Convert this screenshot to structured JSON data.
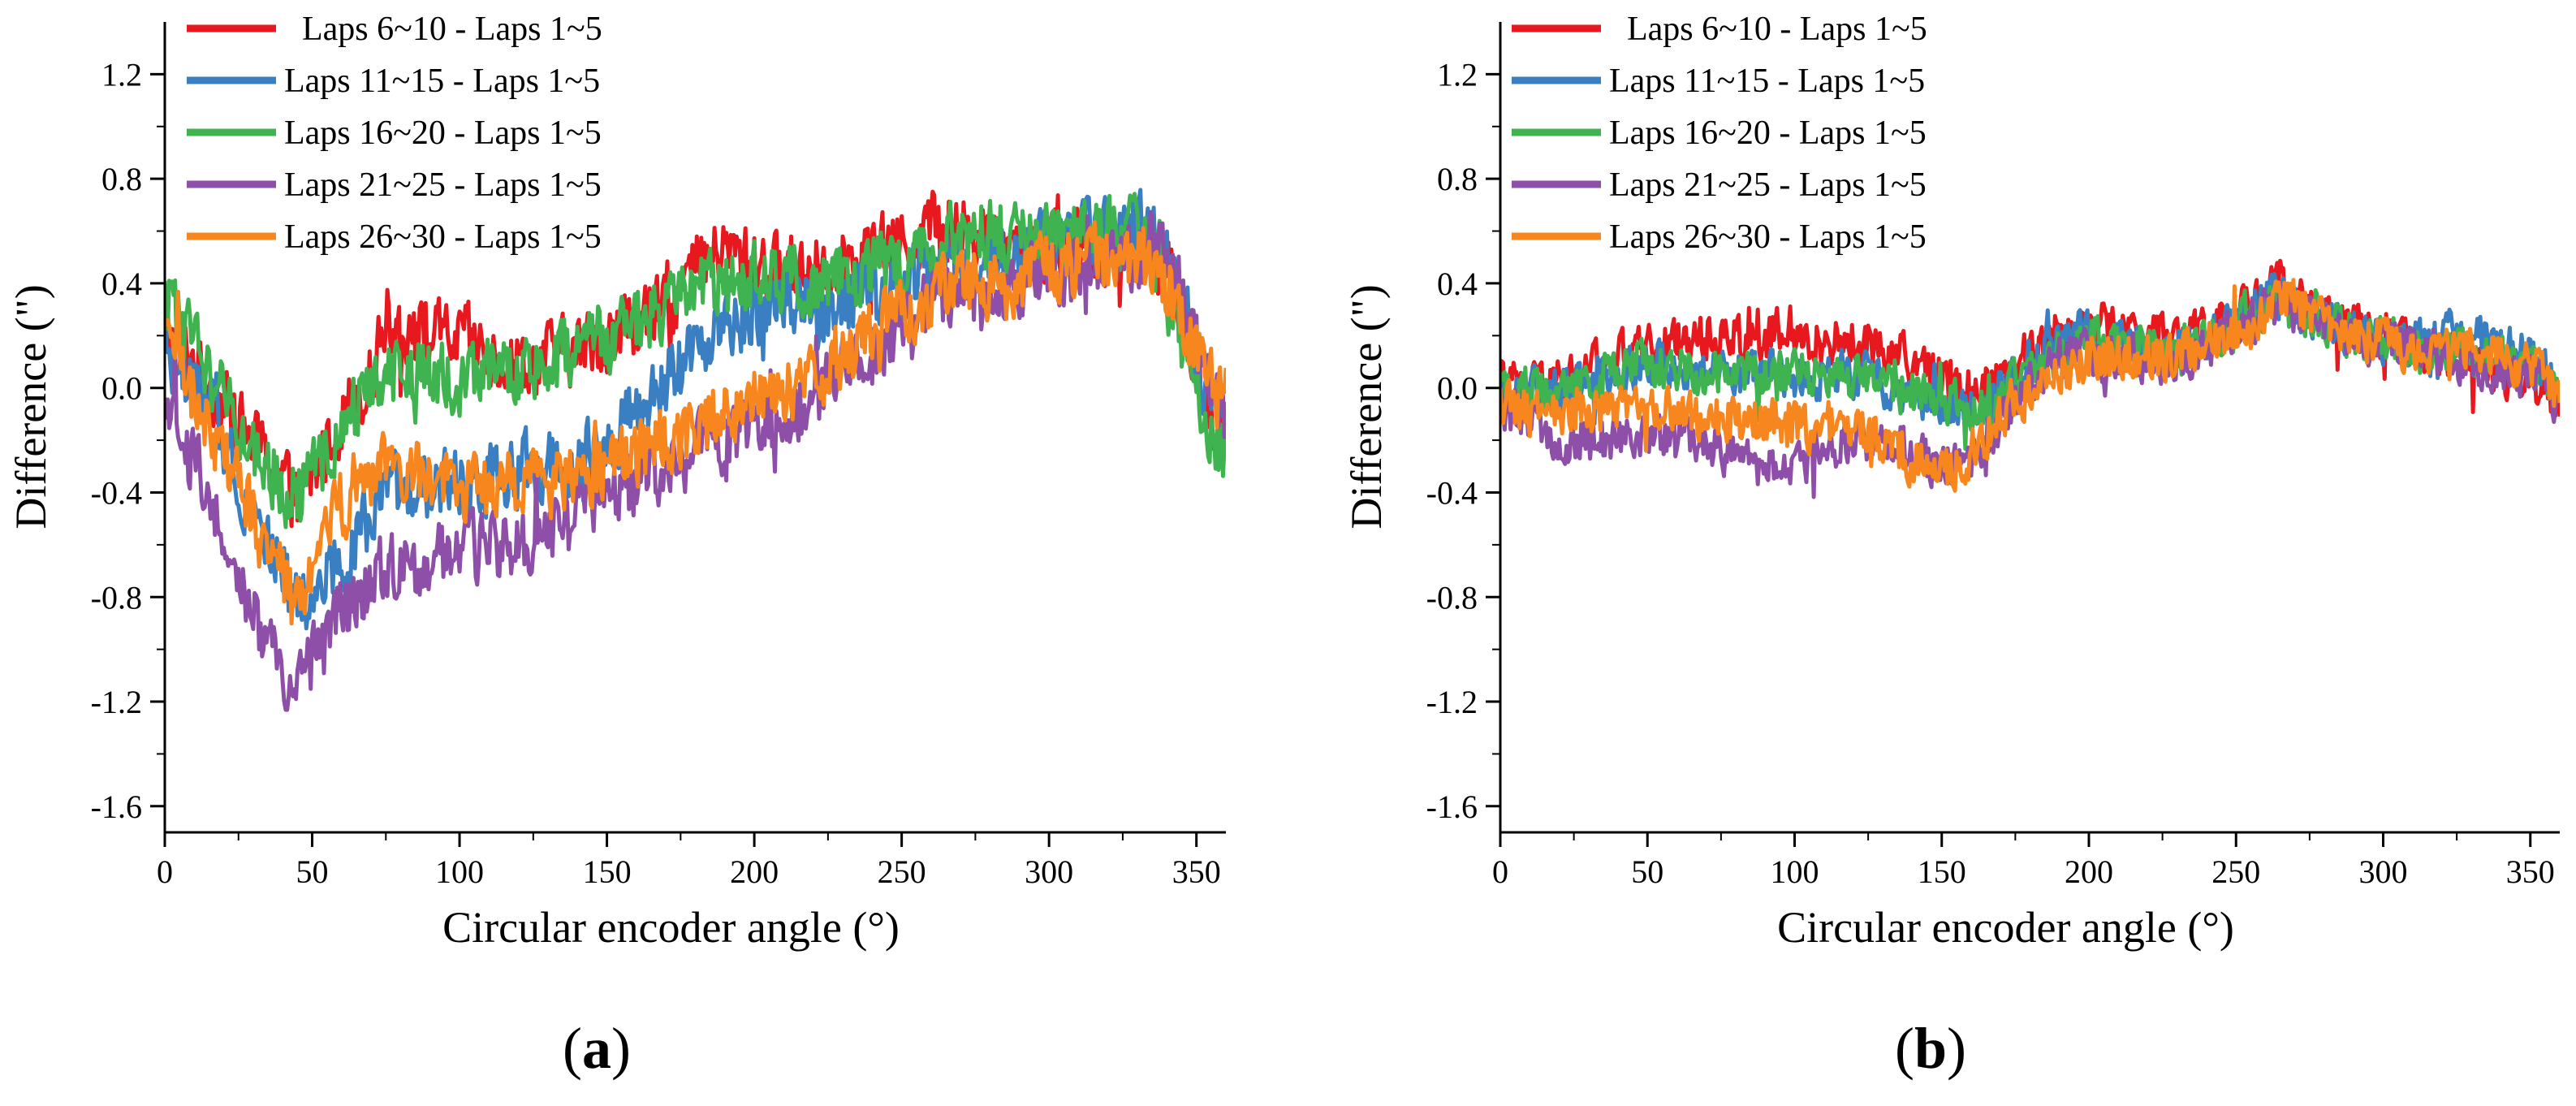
{
  "figure": {
    "panel_labels": [
      "(a)",
      "(b)"
    ]
  },
  "chart_data": [
    {
      "type": "line",
      "panel": "(a)",
      "title": "",
      "xlabel": "Circular encoder angle (°)",
      "ylabel": "Difference (\")",
      "xlim": [
        0,
        360
      ],
      "ylim": [
        -1.7,
        1.4
      ],
      "xticks": [
        0,
        50,
        100,
        150,
        200,
        250,
        300,
        350
      ],
      "yticks": [
        1.2,
        0.8,
        0.4,
        0.0,
        -0.4,
        -0.8,
        -1.2,
        -1.6
      ],
      "ytick_labels": [
        "1.2",
        "0.8",
        "0.4",
        "0.0",
        "-0.4",
        "-0.8",
        "-1.2",
        "-1.6"
      ],
      "grid": false,
      "legend_position": "top-left",
      "x": [
        0,
        10,
        20,
        30,
        40,
        45,
        50,
        60,
        70,
        75,
        80,
        90,
        100,
        110,
        120,
        130,
        140,
        150,
        160,
        170,
        180,
        190,
        200,
        210,
        220,
        230,
        240,
        250,
        260,
        270,
        280,
        290,
        300,
        310,
        320,
        330,
        335,
        340,
        345,
        350,
        355,
        360
      ],
      "noise_amplitude": 0.12,
      "series": [
        {
          "name": "Laps 6~10 - Laps 1~5",
          "color": "#e8191e",
          "values": [
            0.22,
            0.1,
            -0.05,
            -0.2,
            -0.35,
            -0.45,
            -0.35,
            -0.1,
            0.05,
            0.28,
            0.25,
            0.2,
            0.18,
            0.14,
            0.1,
            0.12,
            0.15,
            0.2,
            0.25,
            0.3,
            0.45,
            0.52,
            0.48,
            0.45,
            0.48,
            0.5,
            0.52,
            0.55,
            0.62,
            0.6,
            0.58,
            0.55,
            0.55,
            0.56,
            0.58,
            0.58,
            0.55,
            0.45,
            0.3,
            0.1,
            -0.1,
            -0.2
          ]
        },
        {
          "name": "Laps 11~15 - Laps 1~5",
          "color": "#3a7fc1",
          "values": [
            0.15,
            0.0,
            -0.2,
            -0.45,
            -0.7,
            -0.85,
            -0.8,
            -0.65,
            -0.5,
            -0.42,
            -0.4,
            -0.38,
            -0.36,
            -0.34,
            -0.32,
            -0.3,
            -0.26,
            -0.2,
            -0.1,
            0.0,
            0.15,
            0.25,
            0.3,
            0.3,
            0.3,
            0.32,
            0.35,
            0.4,
            0.45,
            0.48,
            0.5,
            0.52,
            0.55,
            0.58,
            0.6,
            0.62,
            0.6,
            0.5,
            0.35,
            0.1,
            -0.1,
            -0.2
          ]
        },
        {
          "name": "Laps 16~20 - Laps 1~5",
          "color": "#3fb34f",
          "values": [
            0.35,
            0.15,
            -0.05,
            -0.25,
            -0.38,
            -0.42,
            -0.35,
            -0.15,
            0.0,
            0.05,
            0.08,
            0.05,
            0.02,
            0.05,
            0.08,
            0.1,
            0.15,
            0.2,
            0.25,
            0.3,
            0.35,
            0.4,
            0.42,
            0.4,
            0.4,
            0.42,
            0.45,
            0.48,
            0.55,
            0.58,
            0.6,
            0.58,
            0.56,
            0.58,
            0.6,
            0.58,
            0.55,
            0.45,
            0.2,
            -0.05,
            -0.2,
            -0.25
          ]
        },
        {
          "name": "Laps 21~25 - Laps 1~5",
          "color": "#8e4fa8",
          "values": [
            -0.1,
            -0.3,
            -0.55,
            -0.85,
            -1.1,
            -1.2,
            -1.05,
            -0.85,
            -0.75,
            -0.7,
            -0.68,
            -0.66,
            -0.64,
            -0.62,
            -0.58,
            -0.55,
            -0.5,
            -0.45,
            -0.35,
            -0.3,
            -0.25,
            -0.2,
            -0.15,
            -0.1,
            -0.05,
            0.05,
            0.15,
            0.25,
            0.3,
            0.35,
            0.38,
            0.4,
            0.42,
            0.45,
            0.48,
            0.5,
            0.55,
            0.45,
            0.35,
            0.15,
            0.0,
            -0.1
          ]
        },
        {
          "name": "Laps 26~30 - Laps 1~5",
          "color": "#f7861e",
          "values": [
            0.2,
            -0.05,
            -0.25,
            -0.5,
            -0.75,
            -0.85,
            -0.65,
            -0.45,
            -0.35,
            -0.3,
            -0.32,
            -0.35,
            -0.38,
            -0.38,
            -0.38,
            -0.36,
            -0.34,
            -0.3,
            -0.25,
            -0.2,
            -0.15,
            -0.1,
            -0.05,
            0.0,
            0.05,
            0.12,
            0.2,
            0.3,
            0.35,
            0.38,
            0.4,
            0.42,
            0.45,
            0.48,
            0.5,
            0.5,
            0.48,
            0.4,
            0.3,
            0.1,
            0.0,
            -0.05
          ]
        }
      ]
    },
    {
      "type": "line",
      "panel": "(b)",
      "title": "",
      "xlabel": "Circular encoder angle (°)",
      "ylabel": "Difference (\")",
      "xlim": [
        0,
        360
      ],
      "ylim": [
        -1.7,
        1.4
      ],
      "xticks": [
        0,
        50,
        100,
        150,
        200,
        250,
        300,
        350
      ],
      "yticks": [
        1.2,
        0.8,
        0.4,
        0.0,
        -0.4,
        -0.8,
        -1.2,
        -1.6
      ],
      "ytick_labels": [
        "1.2",
        "0.8",
        "0.4",
        "0.0",
        "-0.4",
        "-0.8",
        "-1.2",
        "-1.6"
      ],
      "grid": false,
      "legend_position": "top-left",
      "x": [
        0,
        10,
        20,
        30,
        40,
        50,
        60,
        70,
        80,
        90,
        100,
        110,
        120,
        130,
        140,
        150,
        160,
        170,
        180,
        190,
        200,
        210,
        220,
        230,
        240,
        250,
        260,
        265,
        270,
        280,
        290,
        300,
        310,
        320,
        330,
        340,
        350,
        360
      ],
      "noise_amplitude": 0.08,
      "series": [
        {
          "name": "Laps 6~10 - Laps 1~5",
          "color": "#e8191e",
          "values": [
            0.02,
            0.0,
            0.02,
            0.08,
            0.12,
            0.15,
            0.18,
            0.2,
            0.2,
            0.2,
            0.18,
            0.18,
            0.18,
            0.15,
            0.1,
            0.05,
            0.0,
            0.05,
            0.15,
            0.22,
            0.25,
            0.22,
            0.2,
            0.18,
            0.2,
            0.28,
            0.35,
            0.4,
            0.35,
            0.28,
            0.22,
            0.2,
            0.15,
            0.12,
            0.1,
            0.05,
            0.02,
            -0.05
          ]
        },
        {
          "name": "Laps 11~15 - Laps 1~5",
          "color": "#3a7fc1",
          "values": [
            0.0,
            -0.02,
            0.0,
            0.05,
            0.08,
            0.1,
            0.08,
            0.06,
            0.05,
            0.05,
            0.05,
            0.05,
            0.05,
            0.02,
            -0.02,
            -0.05,
            -0.08,
            -0.02,
            0.1,
            0.18,
            0.2,
            0.18,
            0.15,
            0.15,
            0.18,
            0.25,
            0.32,
            0.35,
            0.32,
            0.25,
            0.2,
            0.18,
            0.18,
            0.2,
            0.2,
            0.18,
            0.12,
            0.0
          ]
        },
        {
          "name": "Laps 16~20 - Laps 1~5",
          "color": "#3fb34f",
          "values": [
            0.0,
            -0.02,
            0.0,
            0.05,
            0.08,
            0.1,
            0.08,
            0.06,
            0.05,
            0.05,
            0.05,
            0.05,
            0.05,
            0.02,
            -0.02,
            -0.05,
            -0.08,
            -0.05,
            0.08,
            0.15,
            0.2,
            0.18,
            0.15,
            0.15,
            0.18,
            0.25,
            0.3,
            0.32,
            0.3,
            0.25,
            0.2,
            0.18,
            0.15,
            0.15,
            0.15,
            0.12,
            0.08,
            -0.05
          ]
        },
        {
          "name": "Laps 21~25 - Laps 1~5",
          "color": "#8e4fa8",
          "values": [
            -0.1,
            -0.15,
            -0.18,
            -0.2,
            -0.2,
            -0.2,
            -0.2,
            -0.22,
            -0.25,
            -0.28,
            -0.3,
            -0.25,
            -0.2,
            -0.2,
            -0.25,
            -0.3,
            -0.28,
            -0.15,
            0.0,
            0.1,
            0.12,
            0.12,
            0.1,
            0.1,
            0.15,
            0.22,
            0.3,
            0.32,
            0.3,
            0.25,
            0.2,
            0.18,
            0.15,
            0.12,
            0.1,
            0.08,
            0.05,
            -0.05
          ]
        },
        {
          "name": "Laps 26~30 - Laps 1~5",
          "color": "#f7861e",
          "values": [
            -0.05,
            -0.1,
            -0.12,
            -0.1,
            -0.08,
            -0.08,
            -0.1,
            -0.12,
            -0.12,
            -0.12,
            -0.15,
            -0.15,
            -0.15,
            -0.2,
            -0.28,
            -0.32,
            -0.25,
            -0.1,
            0.0,
            0.08,
            0.1,
            0.12,
            0.12,
            0.12,
            0.15,
            0.22,
            0.3,
            0.35,
            0.32,
            0.25,
            0.2,
            0.18,
            0.15,
            0.15,
            0.15,
            0.12,
            0.08,
            -0.02
          ]
        }
      ]
    }
  ]
}
